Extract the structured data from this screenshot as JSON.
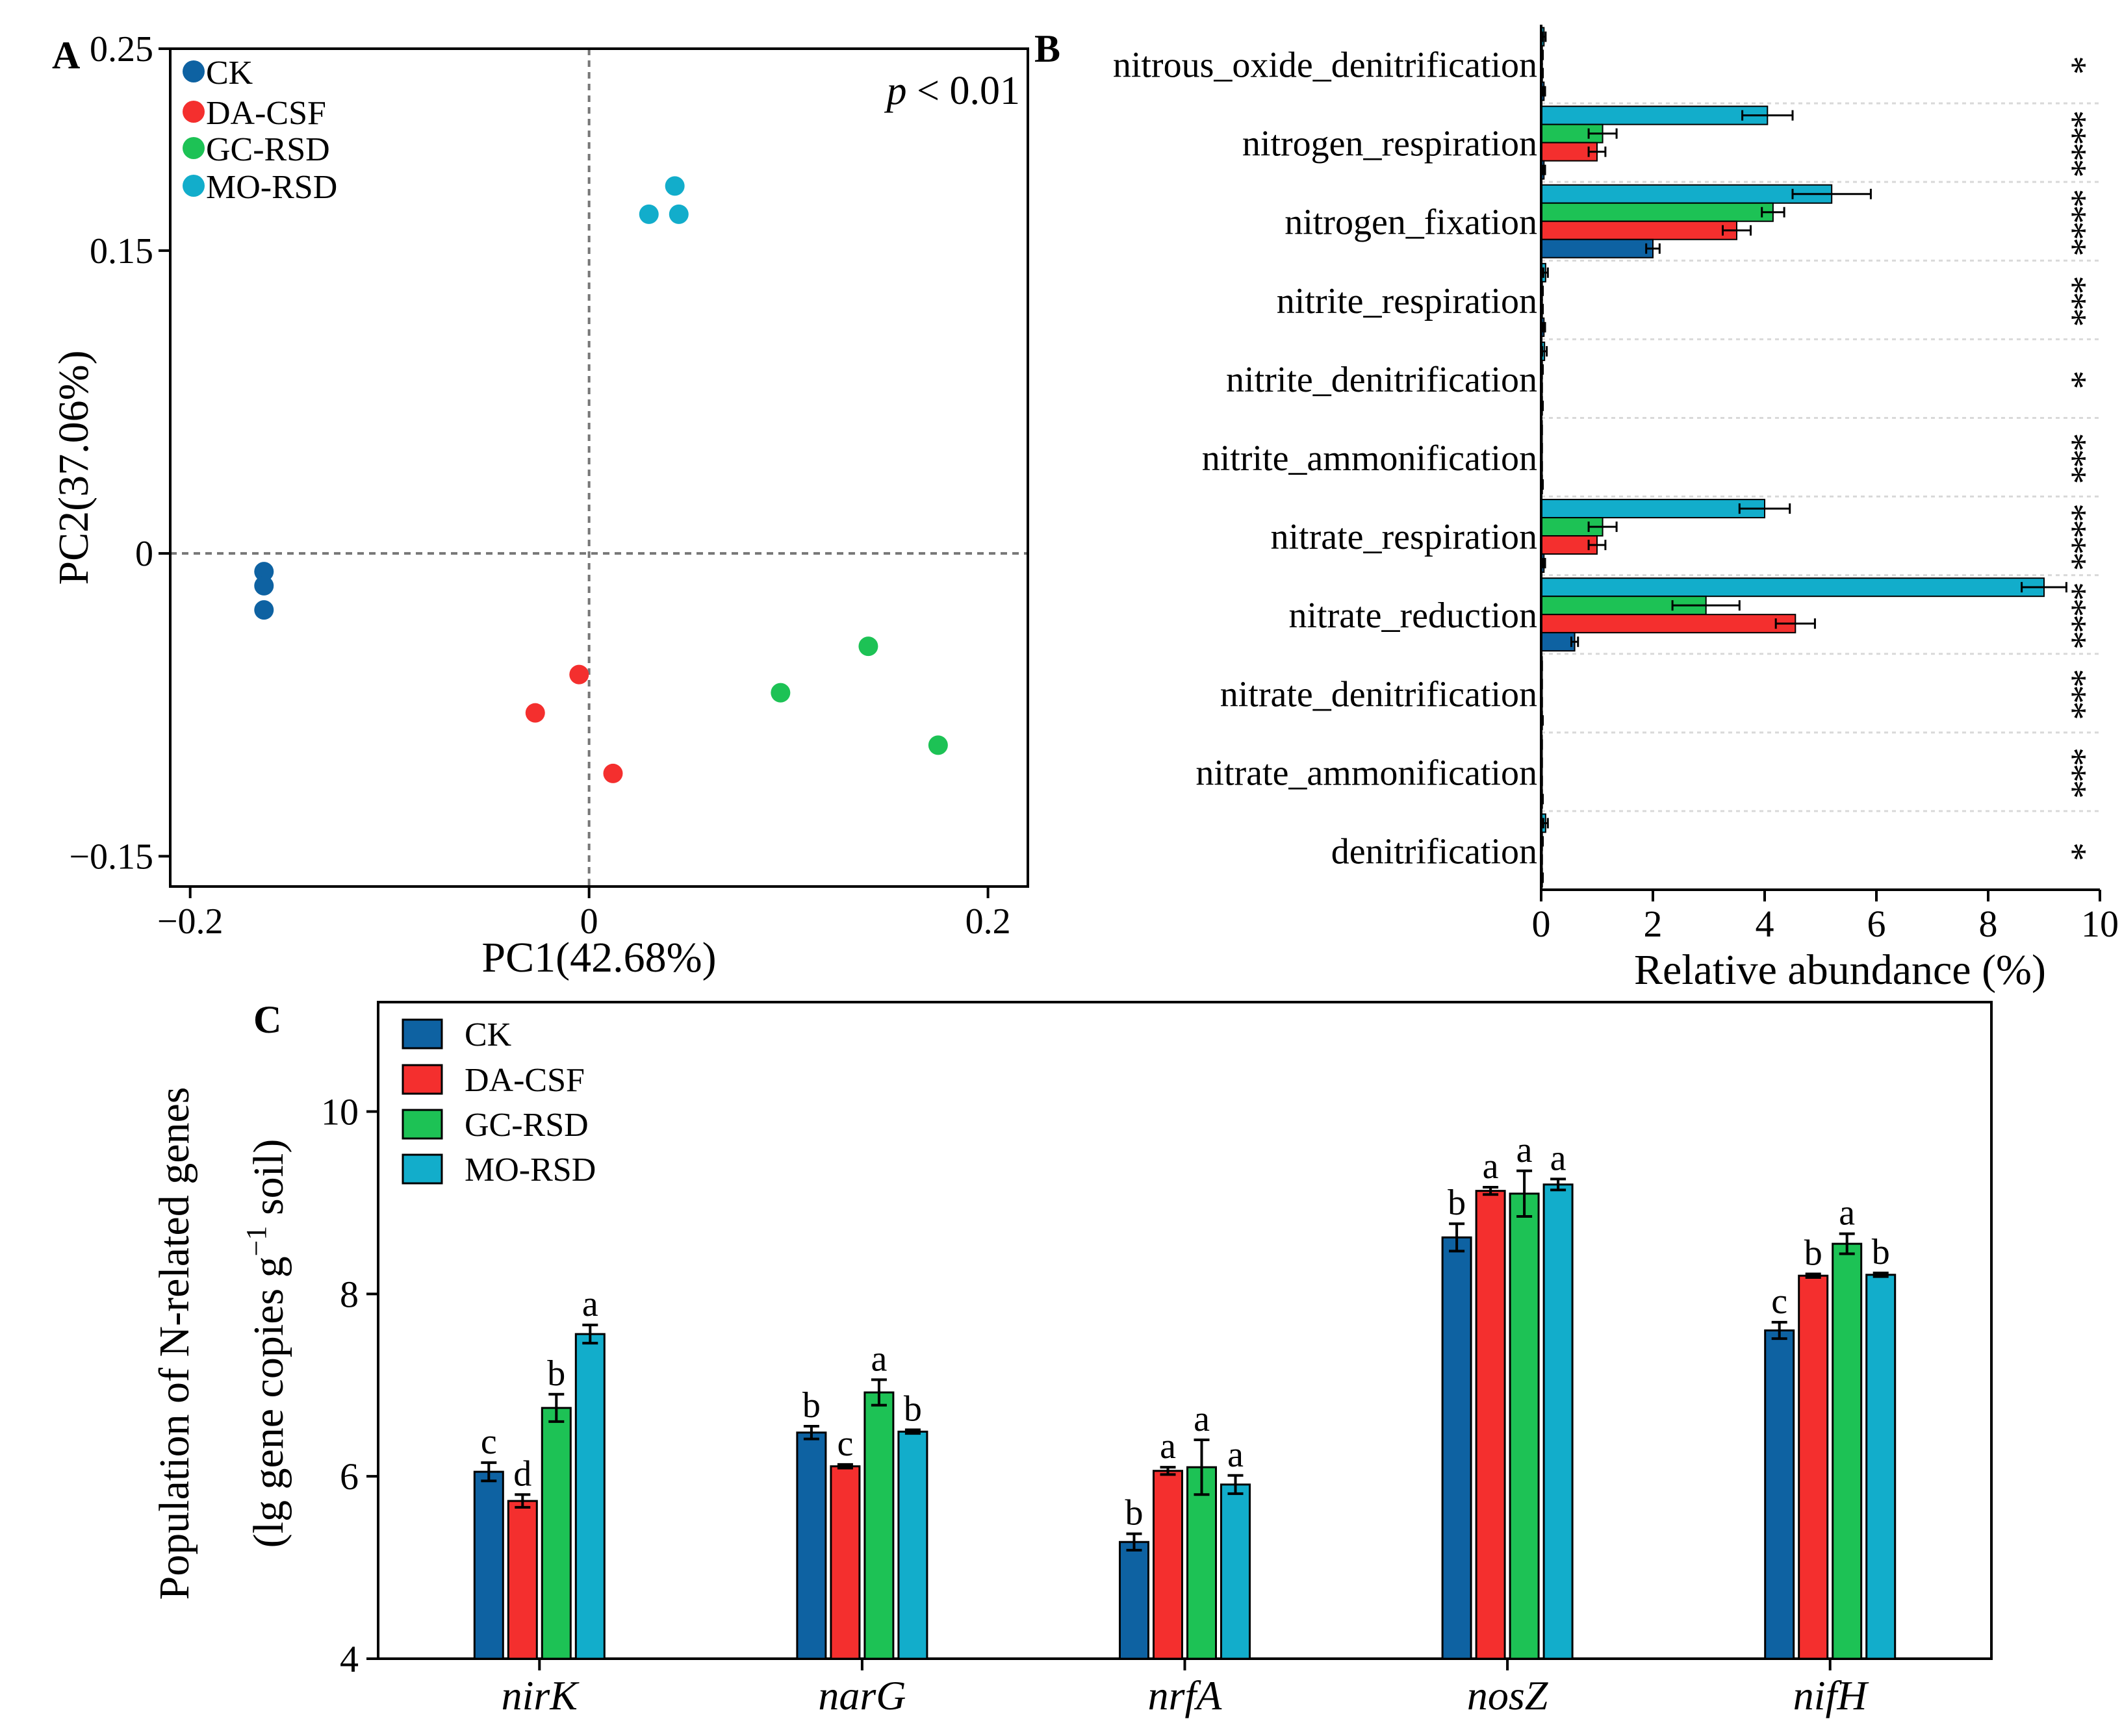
{
  "colors": {
    "CK": "#0E62A2",
    "DA-CSF": "#F42F2E",
    "GC-RSD": "#1DC255",
    "MO-RSD": "#12ADCB",
    "guide": "#777777",
    "sep": "#d9d9d9"
  },
  "chart_data": [
    {
      "panel": "A",
      "type": "scatter",
      "panel_label": "A",
      "xlabel": "PC1(42.68%)",
      "ylabel": "PC2(37.06%)",
      "xlim": [
        -0.21,
        0.22
      ],
      "ylim": [
        -0.165,
        0.25
      ],
      "xticks": [
        -0.2,
        0,
        0.2
      ],
      "xtick_labels": [
        "−0.2",
        "0",
        "0.2"
      ],
      "yticks": [
        -0.15,
        0,
        0.15,
        0.25
      ],
      "ytick_labels": [
        "−0.15",
        "0",
        "0.15",
        "0.25"
      ],
      "annotation_p": "p",
      "annotation_rest": " < 0.01",
      "legend_position": "top-left",
      "series": [
        {
          "name": "CK",
          "points": [
            [
              -0.163,
              -0.009
            ],
            [
              -0.163,
              -0.016
            ],
            [
              -0.163,
              -0.028
            ]
          ]
        },
        {
          "name": "DA-CSF",
          "points": [
            [
              -0.005,
              -0.06
            ],
            [
              -0.027,
              -0.079
            ],
            [
              0.012,
              -0.109
            ]
          ]
        },
        {
          "name": "GC-RSD",
          "points": [
            [
              0.14,
              -0.046
            ],
            [
              0.096,
              -0.069
            ],
            [
              0.175,
              -0.095
            ]
          ]
        },
        {
          "name": "MO-RSD",
          "points": [
            [
              0.043,
              0.182
            ],
            [
              0.03,
              0.168
            ],
            [
              0.045,
              0.168
            ]
          ]
        }
      ]
    },
    {
      "panel": "B",
      "type": "bar",
      "orientation": "horizontal",
      "panel_label": "B",
      "xlabel": "Relative abundance (%)",
      "xlim": [
        0,
        10
      ],
      "xticks": [
        0,
        2,
        4,
        6,
        8,
        10
      ],
      "categories": [
        "nitrous_oxide_denitrification",
        "nitrogen_respiration",
        "nitrogen_fixation",
        "nitrite_respiration",
        "nitrite_denitrification",
        "nitrite_ammonification",
        "nitrate_respiration",
        "nitrate_reduction",
        "nitrate_denitrification",
        "nitrate_ammonification",
        "denitrification"
      ],
      "significance": [
        "*",
        "****",
        "****",
        "***",
        "*",
        "***",
        "****",
        "****",
        "***",
        "***",
        "*"
      ],
      "series": [
        {
          "name": "CK",
          "values": [
            0.05,
            0.05,
            2.0,
            0.05,
            0.02,
            0.02,
            0.05,
            0.6,
            0.02,
            0.02,
            0.02
          ],
          "errors": [
            0.02,
            0.02,
            0.12,
            0.02,
            0.01,
            0.01,
            0.02,
            0.06,
            0.01,
            0.01,
            0.01
          ]
        },
        {
          "name": "DA-CSF",
          "values": [
            0.02,
            1.0,
            3.5,
            0.02,
            0.01,
            0.01,
            1.0,
            4.55,
            0.01,
            0.01,
            0.01
          ],
          "errors": [
            0.01,
            0.15,
            0.25,
            0.01,
            0.005,
            0.005,
            0.15,
            0.35,
            0.005,
            0.005,
            0.005
          ]
        },
        {
          "name": "GC-RSD",
          "values": [
            0.02,
            1.1,
            4.15,
            0.02,
            0.02,
            0.01,
            1.1,
            2.95,
            0.01,
            0.01,
            0.02
          ],
          "errors": [
            0.01,
            0.25,
            0.2,
            0.01,
            0.01,
            0.005,
            0.25,
            0.6,
            0.005,
            0.005,
            0.01
          ]
        },
        {
          "name": "MO-RSD",
          "values": [
            0.05,
            4.05,
            5.2,
            0.08,
            0.06,
            0.01,
            4.0,
            9.0,
            0.01,
            0.01,
            0.08
          ],
          "errors": [
            0.03,
            0.45,
            0.7,
            0.04,
            0.04,
            0.005,
            0.45,
            0.4,
            0.005,
            0.005,
            0.04
          ]
        }
      ]
    },
    {
      "panel": "C",
      "type": "bar",
      "panel_label": "C",
      "ylabel_line1": "Population of N-related genes",
      "ylabel_line2_pre": "(lg gene copies g",
      "ylabel_line2_sup": "−1",
      "ylabel_line2_post": " soil)",
      "ylim": [
        4,
        11.2
      ],
      "yticks": [
        4,
        6,
        8,
        10
      ],
      "categories": [
        "nirK",
        "narG",
        "nrfA",
        "nosZ",
        "nifH"
      ],
      "legend_position": "top-left",
      "series": [
        {
          "name": "CK",
          "values": [
            6.05,
            6.48,
            5.28,
            8.62,
            7.6
          ],
          "errors": [
            0.1,
            0.07,
            0.09,
            0.15,
            0.09
          ],
          "letters": [
            "c",
            "b",
            "b",
            "b",
            "c"
          ]
        },
        {
          "name": "DA-CSF",
          "values": [
            5.73,
            6.11,
            6.06,
            9.13,
            8.2
          ],
          "errors": [
            0.07,
            0.02,
            0.04,
            0.04,
            0.02
          ],
          "letters": [
            "d",
            "c",
            "a",
            "a",
            "b"
          ]
        },
        {
          "name": "GC-RSD",
          "values": [
            6.75,
            6.92,
            6.1,
            9.1,
            8.55
          ],
          "errors": [
            0.15,
            0.14,
            0.3,
            0.25,
            0.11
          ],
          "letters": [
            "b",
            "a",
            "a",
            "a",
            "a"
          ]
        },
        {
          "name": "MO-RSD",
          "values": [
            7.56,
            6.49,
            5.91,
            9.2,
            8.21
          ],
          "errors": [
            0.1,
            0.02,
            0.1,
            0.06,
            0.02
          ],
          "letters": [
            "a",
            "b",
            "a",
            "a",
            "b"
          ]
        }
      ]
    }
  ]
}
